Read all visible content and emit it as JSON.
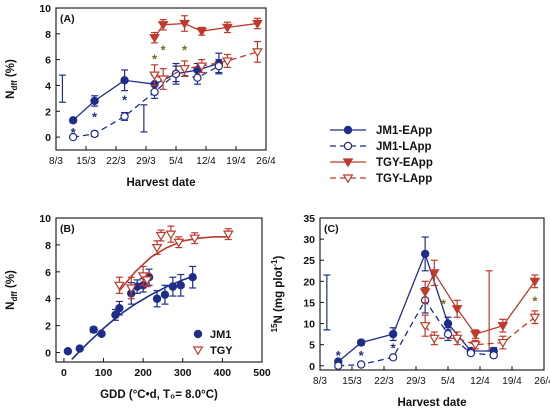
{
  "legend": {
    "items": [
      {
        "label": "JM1-EApp",
        "color": "#1f2d8a",
        "marker": "filled-circle",
        "dash": false
      },
      {
        "label": "JM1-LApp",
        "color": "#1f2d8a",
        "marker": "open-circle",
        "dash": true
      },
      {
        "label": "TGY-EApp",
        "color": "#c0392b",
        "marker": "filled-triangle-down",
        "dash": false
      },
      {
        "label": "TGY-LApp",
        "color": "#c0392b",
        "marker": "open-triangle-down",
        "dash": true
      }
    ]
  },
  "colors": {
    "blue": "#1f2d8a",
    "red": "#c0392b"
  },
  "chart_data": [
    {
      "panel_label": "(A)",
      "type": "line",
      "xlabel": "Harvest date",
      "ylabel_main": "N",
      "ylabel_sub": "dff",
      "ylabel_tail": " (%)",
      "x_tick_labels": [
        "8/3",
        "15/3",
        "22/3",
        "29/3",
        "5/4",
        "12/4",
        "19/4",
        "26/4"
      ],
      "x_tick_days": [
        0,
        7,
        14,
        21,
        28,
        35,
        42,
        49
      ],
      "xlim": [
        0,
        49
      ],
      "ylim": [
        -1,
        10
      ],
      "y_ticks": [
        0,
        2,
        4,
        6,
        8,
        10
      ],
      "series": [
        {
          "name": "JM1-EApp",
          "color": "#1f2d8a",
          "marker": "filled-circle",
          "dash": false,
          "x": [
            4,
            9,
            16,
            23,
            28,
            33,
            38
          ],
          "y": [
            1.3,
            2.8,
            4.4,
            4.1,
            4.9,
            5.2,
            5.7
          ],
          "err": [
            0.15,
            0.4,
            0.8,
            0.7,
            0.6,
            0.5,
            0.8
          ]
        },
        {
          "name": "JM1-LApp",
          "color": "#1f2d8a",
          "marker": "open-circle",
          "dash": true,
          "x": [
            4,
            9,
            16,
            23,
            28,
            33,
            38
          ],
          "y": [
            0.0,
            0.25,
            1.6,
            3.5,
            4.9,
            4.6,
            5.5
          ],
          "err": [
            0.1,
            0.2,
            0.3,
            0.5,
            0.8,
            0.5,
            0.5
          ]
        },
        {
          "name": "TGY-EApp",
          "color": "#c0392b",
          "marker": "filled-triangle-down",
          "dash": false,
          "x": [
            23,
            25,
            30,
            34,
            40,
            47
          ],
          "y": [
            7.7,
            8.7,
            8.8,
            8.2,
            8.5,
            8.8
          ],
          "err": [
            0.4,
            0.4,
            0.6,
            0.3,
            0.4,
            0.4
          ]
        },
        {
          "name": "TGY-LApp",
          "color": "#c0392b",
          "marker": "open-triangle-down",
          "dash": true,
          "x": [
            23,
            25,
            30,
            34,
            40,
            47
          ],
          "y": [
            4.8,
            4.5,
            5.3,
            5.5,
            5.9,
            6.6
          ],
          "err": [
            0.8,
            0.8,
            0.6,
            0.5,
            0.5,
            0.8
          ]
        }
      ],
      "standalone_error_bars": [
        {
          "x": 1.5,
          "y_low": 2.7,
          "y_high": 4.8,
          "color": "#1f2d8a"
        },
        {
          "x": 20.5,
          "y_low": 0.4,
          "y_high": 2.5,
          "color": "#1f2d8a"
        }
      ],
      "annotations": [
        {
          "text": "*",
          "x": 4,
          "y": 0.4,
          "color": "#1f2d8a"
        },
        {
          "text": "*",
          "x": 9,
          "y": 1.6,
          "color": "#1f2d8a"
        },
        {
          "text": "*",
          "x": 16,
          "y": 2.9,
          "color": "#1f2d8a"
        },
        {
          "text": "*",
          "x": 23,
          "y": 6.1,
          "color": "#7a6a1a"
        },
        {
          "text": "*",
          "x": 25,
          "y": 6.8,
          "color": "#7a6a1a"
        },
        {
          "text": "*",
          "x": 30,
          "y": 6.8,
          "color": "#7a6a1a"
        }
      ]
    },
    {
      "panel_label": "(B)",
      "type": "scatter",
      "xlabel": "GDD (°C•d, T₀= 8.0°C)",
      "ylabel_main": "N",
      "ylabel_sub": "dff",
      "ylabel_tail": " (%)",
      "x_ticks": [
        0,
        100,
        200,
        300,
        400,
        500
      ],
      "xlim": [
        -20,
        500
      ],
      "ylim": [
        -0.7,
        10
      ],
      "y_ticks": [
        0,
        2,
        4,
        6,
        8,
        10
      ],
      "legend": [
        {
          "label": "JM1",
          "color": "#1f2d8a",
          "marker": "filled-circle"
        },
        {
          "label": "TGY",
          "color": "#c0392b",
          "marker": "open-triangle-down"
        }
      ],
      "series": [
        {
          "name": "JM1",
          "color": "#1f2d8a",
          "marker": "filled-circle",
          "x": [
            10,
            40,
            75,
            95,
            130,
            140,
            170,
            185,
            200,
            215,
            235,
            255,
            275,
            295,
            325
          ],
          "y": [
            0.1,
            0.3,
            1.7,
            1.4,
            2.8,
            3.3,
            4.4,
            4.9,
            5.0,
            5.6,
            4.0,
            4.3,
            4.9,
            5.0,
            5.6
          ],
          "err": [
            0,
            0,
            0.2,
            0.1,
            0.4,
            0.5,
            0.8,
            0.5,
            0.5,
            0.6,
            0.6,
            0.7,
            0.7,
            0.8,
            0.8
          ]
        },
        {
          "name": "TGY",
          "color": "#c0392b",
          "marker": "open-triangle-down",
          "x": [
            140,
            170,
            200,
            210,
            235,
            245,
            270,
            290,
            330,
            415
          ],
          "y": [
            5.0,
            4.8,
            5.7,
            5.4,
            7.8,
            8.7,
            8.8,
            8.2,
            8.5,
            8.8
          ],
          "err": [
            0.6,
            0.8,
            0.7,
            0.5,
            0.5,
            0.4,
            0.6,
            0.4,
            0.4,
            0.4
          ]
        }
      ],
      "fits": [
        {
          "color": "#1f2d8a",
          "x": [
            20,
            60,
            100,
            140,
            180,
            220,
            260,
            300,
            330
          ],
          "y": [
            -0.5,
            0.7,
            1.8,
            2.8,
            3.6,
            4.3,
            4.9,
            5.4,
            5.7
          ]
        },
        {
          "color": "#c0392b",
          "x": [
            140,
            180,
            220,
            260,
            300,
            340,
            380,
            420
          ],
          "y": [
            4.6,
            6.0,
            7.1,
            7.8,
            8.3,
            8.5,
            8.6,
            8.6
          ]
        }
      ]
    },
    {
      "panel_label": "(C)",
      "type": "line",
      "xlabel": "Harvest date",
      "ylabel_sup": "15",
      "ylabel_main": "N (mg plot",
      "ylabel_sup2": "-1",
      "ylabel_tail": ")",
      "x_tick_labels": [
        "8/3",
        "15/3",
        "22/3",
        "29/3",
        "5/4",
        "12/4",
        "19/4",
        "26/4"
      ],
      "x_tick_days": [
        0,
        7,
        14,
        21,
        28,
        35,
        42,
        49
      ],
      "xlim": [
        0,
        49
      ],
      "ylim": [
        -1,
        35
      ],
      "y_ticks": [
        0,
        5,
        10,
        15,
        20,
        25,
        30,
        35
      ],
      "series": [
        {
          "name": "JM1-EApp",
          "color": "#1f2d8a",
          "marker": "filled-circle",
          "dash": false,
          "x": [
            4,
            9,
            16,
            23,
            28,
            33,
            38
          ],
          "y": [
            1.0,
            5.5,
            7.5,
            26.5,
            10.0,
            3.5,
            3.5
          ],
          "err": [
            0.3,
            0.6,
            1.5,
            4.0,
            1.5,
            0.6,
            0.8
          ]
        },
        {
          "name": "JM1-LApp",
          "color": "#1f2d8a",
          "marker": "open-circle",
          "dash": true,
          "x": [
            4,
            9,
            16,
            23,
            28,
            33,
            38
          ],
          "y": [
            0.0,
            0.3,
            2.0,
            15.5,
            7.5,
            3.0,
            2.5
          ],
          "err": [
            0.1,
            0.2,
            0.5,
            3.0,
            1.5,
            0.5,
            0.5
          ]
        },
        {
          "name": "TGY-EApp",
          "color": "#c0392b",
          "marker": "filled-triangle-down",
          "dash": false,
          "x": [
            23,
            25,
            30,
            34,
            40,
            47
          ],
          "y": [
            17.5,
            22.0,
            13.5,
            7.5,
            9.5,
            20.0
          ],
          "err": [
            2.5,
            3.0,
            2.0,
            1.0,
            1.5,
            1.5
          ]
        },
        {
          "name": "TGY-LApp",
          "color": "#c0392b",
          "marker": "open-triangle-down",
          "dash": true,
          "x": [
            23,
            25,
            30,
            34,
            40,
            47
          ],
          "y": [
            9.5,
            6.5,
            6.5,
            5.0,
            5.5,
            11.5
          ],
          "err": [
            2.5,
            1.5,
            1.5,
            1.0,
            1.5,
            1.5
          ]
        }
      ],
      "standalone_error_bars": [
        {
          "x": 1.5,
          "y_low": 8.5,
          "y_high": 21.5,
          "color": "#1f2d8a"
        },
        {
          "x": 37,
          "y_low": 3.5,
          "y_high": 22.5,
          "color": "#c0392b"
        }
      ],
      "annotations": [
        {
          "text": "*",
          "x": 4,
          "y": 2.6,
          "color": "#1f2d8a"
        },
        {
          "text": "*",
          "x": 9,
          "y": 2.6,
          "color": "#1f2d8a"
        },
        {
          "text": "*",
          "x": 16,
          "y": 4.3,
          "color": "#1f2d8a"
        },
        {
          "text": "*",
          "x": 27,
          "y": 14.8,
          "color": "#7a6a1a"
        },
        {
          "text": "*",
          "x": 47,
          "y": 15.5,
          "color": "#7a6a1a"
        }
      ]
    }
  ]
}
